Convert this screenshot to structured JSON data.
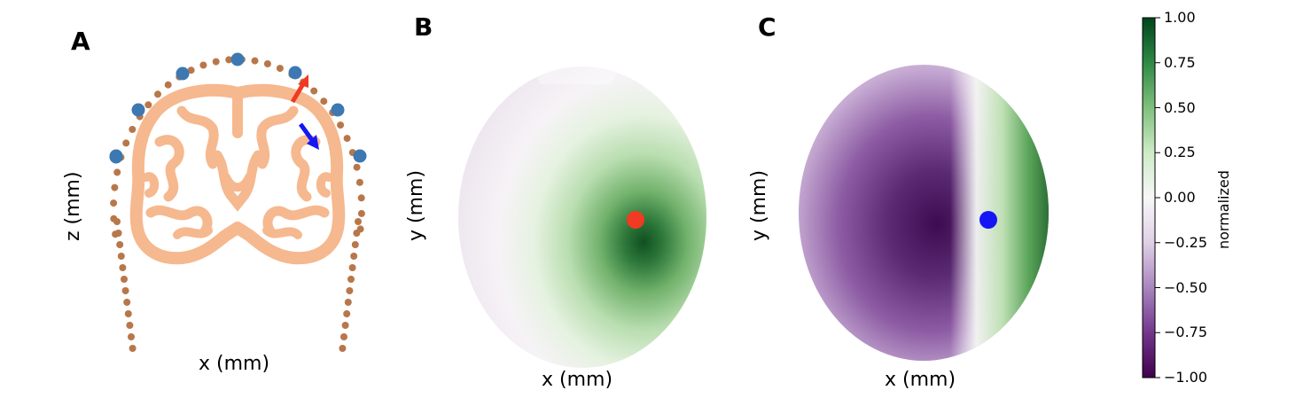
{
  "panels": {
    "a": {
      "letter": "A",
      "xlabel": "x (mm)",
      "ylabel": "z (mm)"
    },
    "b": {
      "letter": "B",
      "xlabel": "x (mm)",
      "ylabel": "y (mm)"
    },
    "c": {
      "letter": "C",
      "xlabel": "x (mm)",
      "ylabel": "y (mm)"
    }
  },
  "colorbar": {
    "label": "normalized",
    "ticks": [
      "1.00",
      "0.75",
      "0.50",
      "0.25",
      "0.00",
      "−0.25",
      "−0.50",
      "−0.75",
      "−1.00"
    ],
    "colormap": "PRGn",
    "range": [
      -1.0,
      1.0
    ]
  },
  "colors": {
    "brain": "#f6b88e",
    "scalp_points": "#b8774a",
    "electrodes": "#3d78b2",
    "dipole_red": "#f03a22",
    "dipole_blue": "#1616f5",
    "positive": "#0e4a1f",
    "negative": "#3f0b4d"
  },
  "chart_data": [
    {
      "panel": "A",
      "type": "scatter",
      "description_items": [
        "brain cortex outline",
        "scalp sensor points",
        "EEG electrodes",
        "red dipole arrow",
        "blue dipole arrow"
      ],
      "xlabel": "x (mm)",
      "ylabel": "z (mm)",
      "electrode_count": 8
    },
    {
      "panel": "B",
      "type": "heatmap",
      "xlabel": "x (mm)",
      "ylabel": "y (mm)",
      "peak_value": 1.0,
      "background_value": -0.05,
      "marker_color": "red"
    },
    {
      "panel": "C",
      "type": "heatmap",
      "xlabel": "x (mm)",
      "ylabel": "y (mm)",
      "min_value": -1.0,
      "max_value": 0.9,
      "marker_color": "blue"
    }
  ]
}
